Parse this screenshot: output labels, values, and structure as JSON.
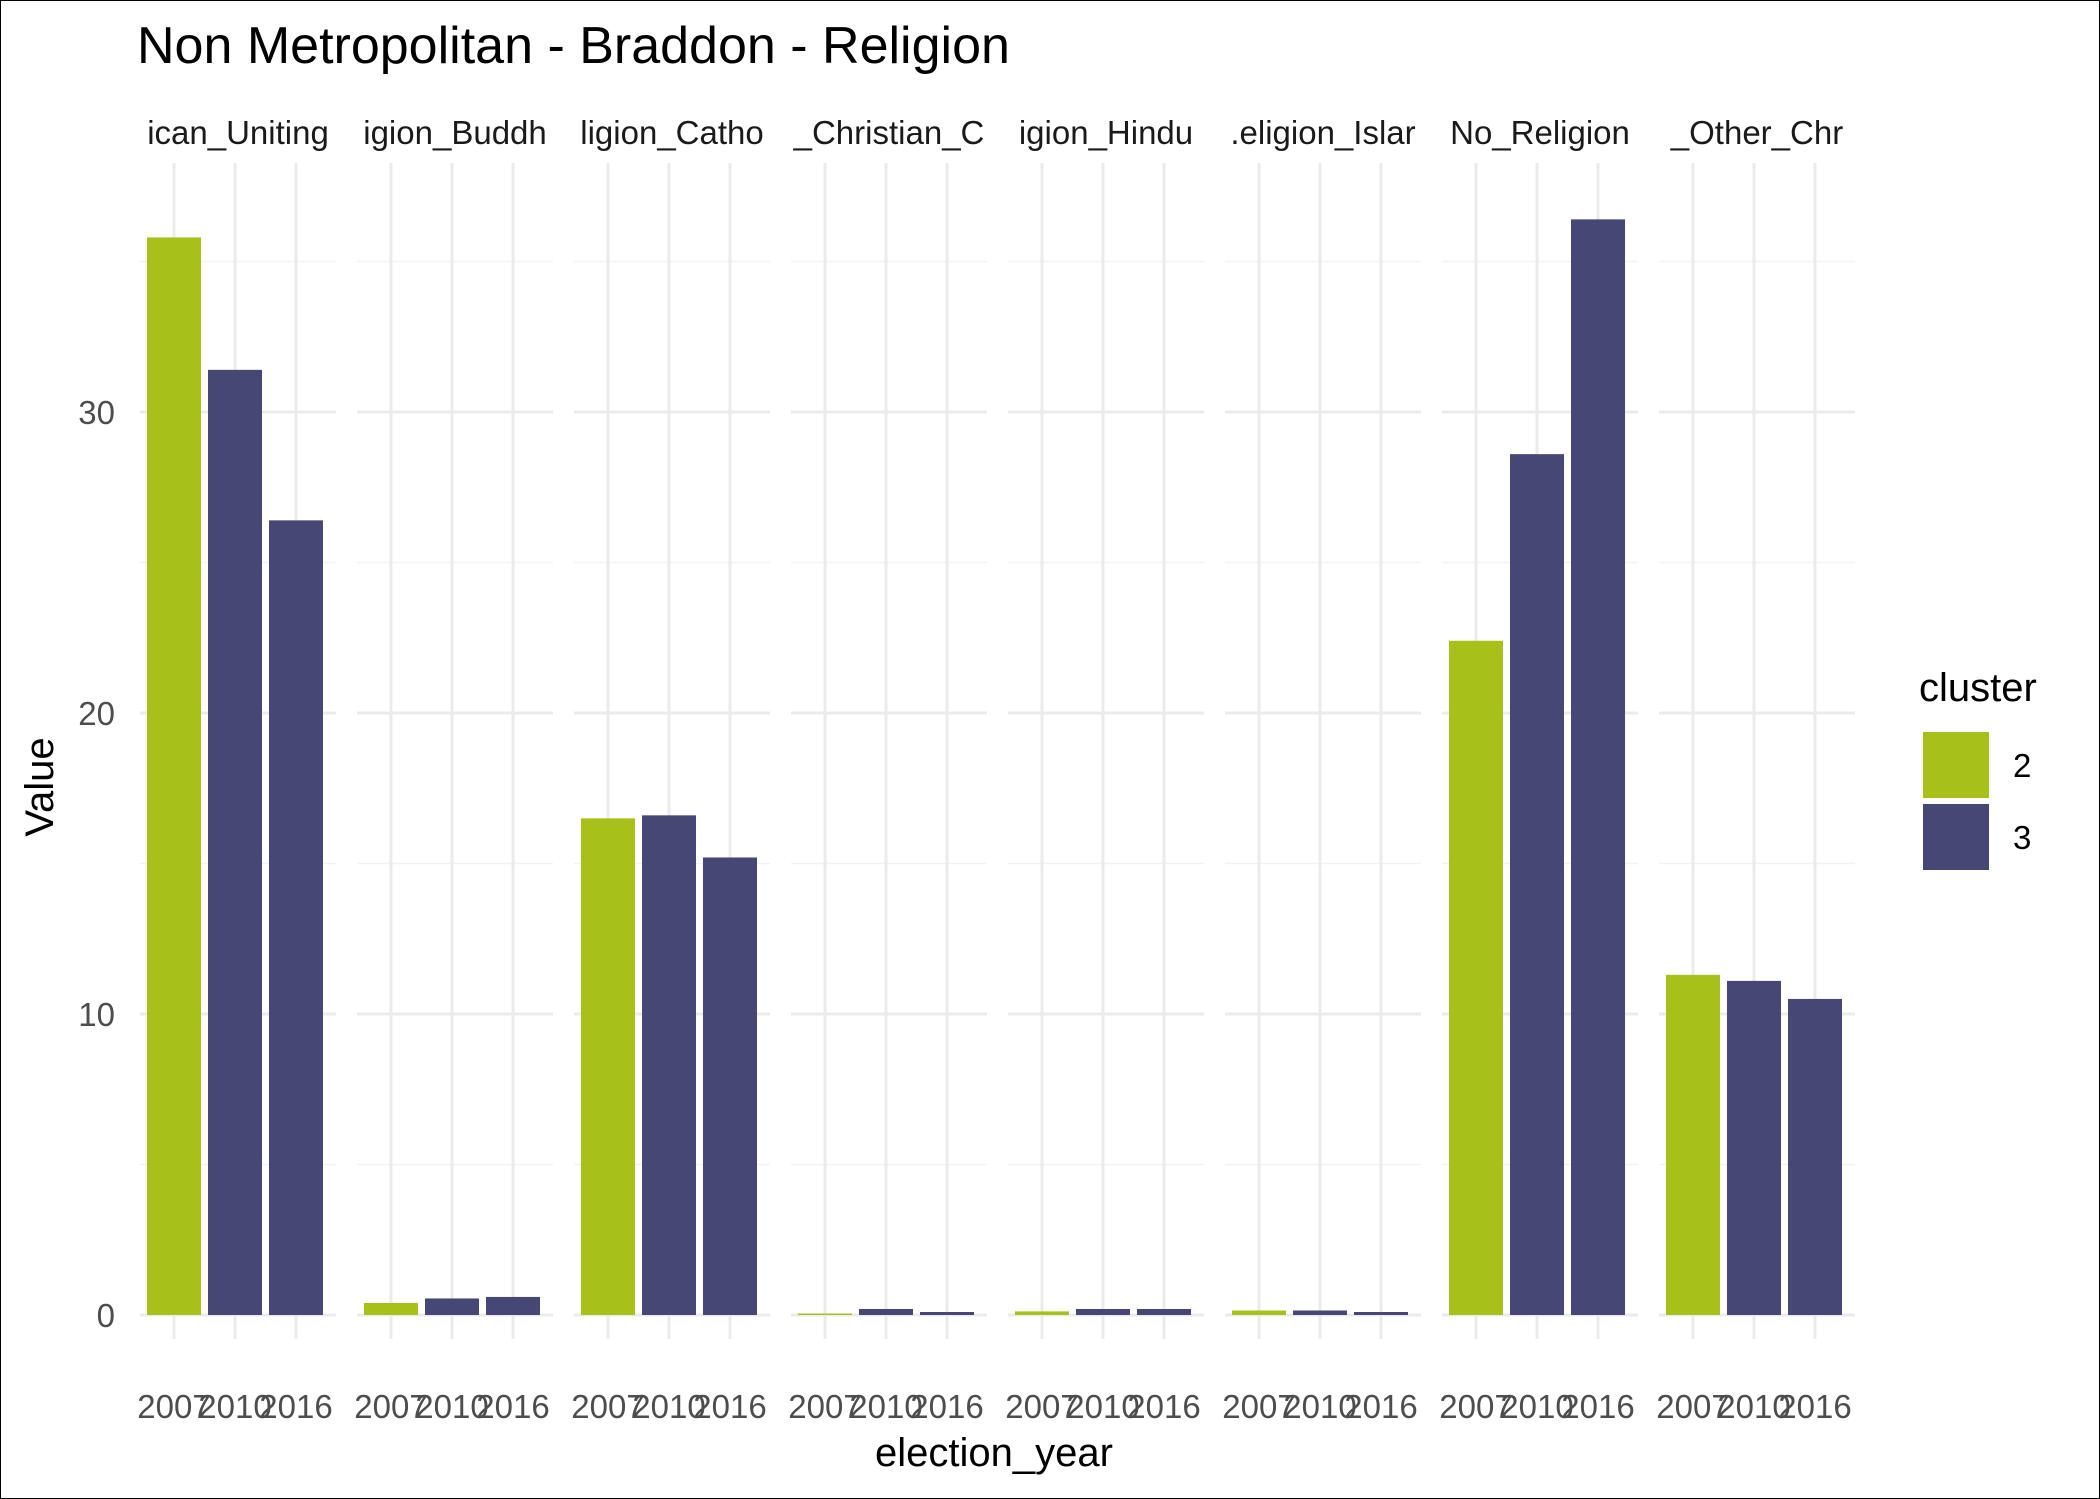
{
  "chart_data": {
    "type": "bar",
    "title": "Non Metropolitan - Braddon - Religion",
    "xlabel": "election_year",
    "ylabel": "Value",
    "ylim": [
      0,
      38
    ],
    "y_ticks": [
      0,
      10,
      20,
      30
    ],
    "grid": true,
    "legend": {
      "title": "cluster",
      "placement": "right",
      "entries": [
        {
          "label": "2",
          "color": "#A8C11A"
        },
        {
          "label": "3",
          "color": "#464775"
        }
      ]
    },
    "years": [
      "2007",
      "2010",
      "2016"
    ],
    "bar_clusters": [
      "2",
      "3",
      "3"
    ],
    "facets": [
      {
        "label": "ican_Uniting",
        "values": [
          35.8,
          31.4,
          26.4
        ]
      },
      {
        "label": "igion_Buddh",
        "values": [
          0.4,
          0.55,
          0.6
        ]
      },
      {
        "label": "ligion_Catho",
        "values": [
          16.5,
          16.6,
          15.2
        ]
      },
      {
        "label": "_Christian_C",
        "values": [
          0.05,
          0.2,
          0.1
        ]
      },
      {
        "label": "igion_Hindu",
        "values": [
          0.12,
          0.2,
          0.2
        ]
      },
      {
        "label": ".eligion_Islar",
        "values": [
          0.15,
          0.15,
          0.1
        ]
      },
      {
        "label": "No_Religion",
        "values": [
          22.4,
          28.6,
          36.4
        ]
      },
      {
        "label": "_Other_Chr",
        "values": [
          11.3,
          11.1,
          10.5
        ]
      }
    ]
  }
}
